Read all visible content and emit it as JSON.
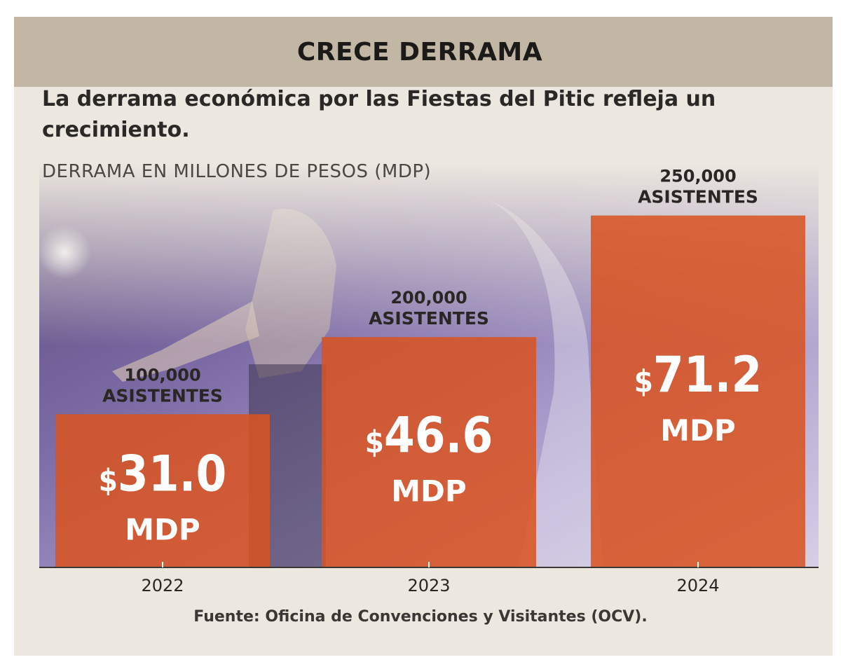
{
  "header": {
    "title": "CRECE DERRAMA"
  },
  "subtitle": "La derrama económica por las Fiestas del Pitic refleja un crecimiento.",
  "unit_label": "DERRAMA EN MILLONES DE PESOS (MDP)",
  "source": "Fuente: Oficina de Convenciones y Visitantes (OCV).",
  "colors": {
    "bar": "#d9531f",
    "banner": "#c2b6a4",
    "background": "#ece7df"
  },
  "chart_data": {
    "type": "bar",
    "title": "CRECE DERRAMA",
    "ylabel": "DERRAMA EN MILLONES DE PESOS (MDP)",
    "xlabel": "",
    "categories": [
      "2022",
      "2023",
      "2024"
    ],
    "values": [
      31.0,
      46.6,
      71.2
    ],
    "value_labels": [
      "31.0",
      "46.6",
      "71.2"
    ],
    "value_prefix": "$",
    "value_unit": "MDP",
    "attendees": [
      "100,000",
      "200,000",
      "250,000"
    ],
    "attendees_unit": "ASISTENTES",
    "ylim": [
      0,
      90
    ],
    "grid": false,
    "legend": "none"
  }
}
